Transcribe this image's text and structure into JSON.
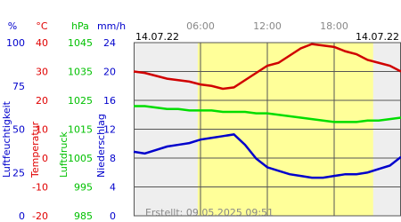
{
  "chart_data": {
    "type": "line",
    "date_left": "14.07.22",
    "date_right": "14.07.22",
    "created": "Erstellt: 09.05.2025 09:51",
    "xlim": [
      0,
      24
    ],
    "xticks": [
      {
        "value": 6,
        "label": "06:00"
      },
      {
        "value": 12,
        "label": "12:00"
      },
      {
        "value": 18,
        "label": "18:00"
      }
    ],
    "daylight": [
      5.75,
      21.5
    ],
    "axes": [
      {
        "unit": "%",
        "title": "Luftfeuchtigkeit",
        "color": "#0000cc",
        "lim": [
          0,
          100
        ],
        "ticks": [
          0,
          25,
          50,
          75,
          100
        ]
      },
      {
        "unit": "°C",
        "title": "Temperatur",
        "color": "#e00000",
        "lim": [
          -20,
          40
        ],
        "ticks": [
          -20,
          -10,
          0,
          10,
          20,
          30,
          40
        ]
      },
      {
        "unit": "hPa",
        "title": "Luftdruck",
        "color": "#00c000",
        "lim": [
          985,
          1045
        ],
        "ticks": [
          985,
          995,
          1005,
          1015,
          1025,
          1035,
          1045
        ]
      },
      {
        "unit": "mm/h",
        "title": "Niederschlag",
        "color": "#0000cc",
        "lim": [
          0,
          24
        ],
        "ticks": [
          0,
          4,
          8,
          12,
          16,
          20,
          24
        ]
      }
    ],
    "x": [
      0,
      1,
      2,
      3,
      4,
      5,
      6,
      7,
      8,
      9,
      10,
      11,
      12,
      13,
      14,
      15,
      16,
      17,
      18,
      19,
      20,
      21,
      22,
      23,
      24
    ],
    "series": [
      {
        "name": "Temperatur",
        "axis": 1,
        "color": "#d00000",
        "values": [
          30,
          29.5,
          28.5,
          27.5,
          27,
          26.5,
          25.5,
          25,
          24,
          24.5,
          27,
          29.5,
          32,
          33,
          35.5,
          38,
          39.5,
          39,
          38.5,
          37,
          36,
          34,
          33,
          32,
          30
        ]
      },
      {
        "name": "Luftdruck",
        "axis": 2,
        "color": "#00dd00",
        "values": [
          1023,
          1023,
          1022.5,
          1022,
          1022,
          1021.5,
          1021.5,
          1021.5,
          1021,
          1021,
          1021,
          1020.5,
          1020.5,
          1020,
          1019.5,
          1019,
          1018.5,
          1018,
          1017.5,
          1017.5,
          1017.5,
          1018,
          1018,
          1018.5,
          1019
        ]
      },
      {
        "name": "Luftfeuchtigkeit",
        "axis": 0,
        "color": "#0000cc",
        "values": [
          37,
          36,
          38,
          40,
          41,
          42,
          44,
          45,
          46,
          47,
          41,
          33,
          28,
          26,
          24,
          23,
          22,
          22,
          23,
          24,
          24,
          25,
          27,
          29,
          34
        ]
      }
    ]
  }
}
